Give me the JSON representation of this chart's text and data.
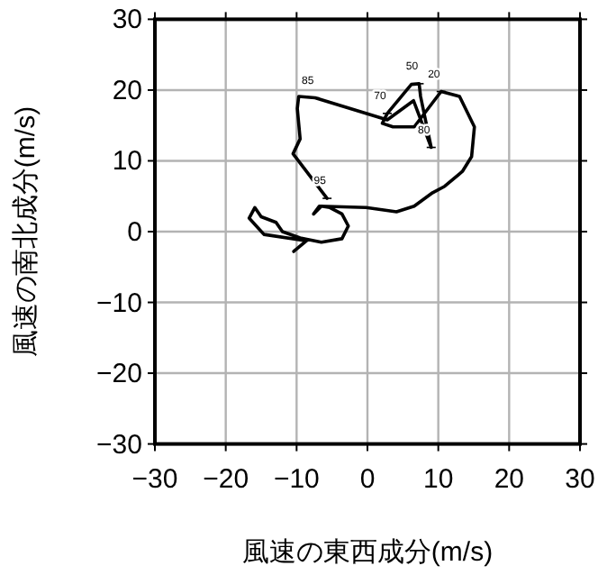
{
  "chart_data": {
    "type": "line",
    "xlabel": "風速の東西成分(m/s)",
    "ylabel": "風速の南北成分(m/s)",
    "x": [
      -10.4,
      -8.6,
      -14.6,
      -16.7,
      -15.9,
      -15.0,
      -12.9,
      -12.0,
      -9.5,
      -6.5,
      -3.6,
      -2.7,
      -3.6,
      -5.3,
      -6.5,
      -7.6,
      -6.8,
      -0.2,
      4.1,
      6.6,
      9.2,
      10.9,
      13.4,
      14.7,
      15.1,
      13.0,
      10.4,
      6.6,
      3.6,
      2.1,
      2.8,
      6.2,
      7.3,
      7.5,
      9.0,
      6.5,
      2.8,
      -7.4,
      -9.7,
      -9.9,
      -9.5,
      -10.5,
      -5.7
    ],
    "values": [
      -2.8,
      -1.3,
      -0.4,
      1.9,
      3.4,
      2.1,
      1.3,
      0.0,
      -0.9,
      -1.5,
      -1.0,
      0.8,
      2.5,
      3.4,
      3.6,
      2.5,
      3.6,
      3.4,
      2.8,
      3.6,
      5.5,
      6.4,
      8.5,
      10.6,
      14.8,
      19.1,
      19.8,
      14.8,
      14.8,
      15.3,
      16.7,
      20.8,
      20.9,
      19.1,
      11.9,
      18.5,
      15.8,
      18.9,
      19.1,
      17.4,
      13.1,
      11.0,
      4.7
    ],
    "color": "#000000",
    "xlim": [
      -30,
      30
    ],
    "ylim": [
      -30,
      30
    ],
    "xticks": [
      -30,
      -20,
      -10,
      0,
      10,
      20,
      30
    ],
    "yticks": [
      -30,
      -20,
      -10,
      0,
      10,
      20,
      30
    ],
    "grid": true,
    "annotations": [
      {
        "text": "50",
        "x": 7.3,
        "y": 20.9
      },
      {
        "text": "20",
        "x": 10.4,
        "y": 19.8
      },
      {
        "text": "70",
        "x": 2.8,
        "y": 16.7
      },
      {
        "text": "80",
        "x": 9.0,
        "y": 11.9
      },
      {
        "text": "85",
        "x": -7.4,
        "y": 18.9
      },
      {
        "text": "95",
        "x": -5.7,
        "y": 4.7
      }
    ]
  }
}
